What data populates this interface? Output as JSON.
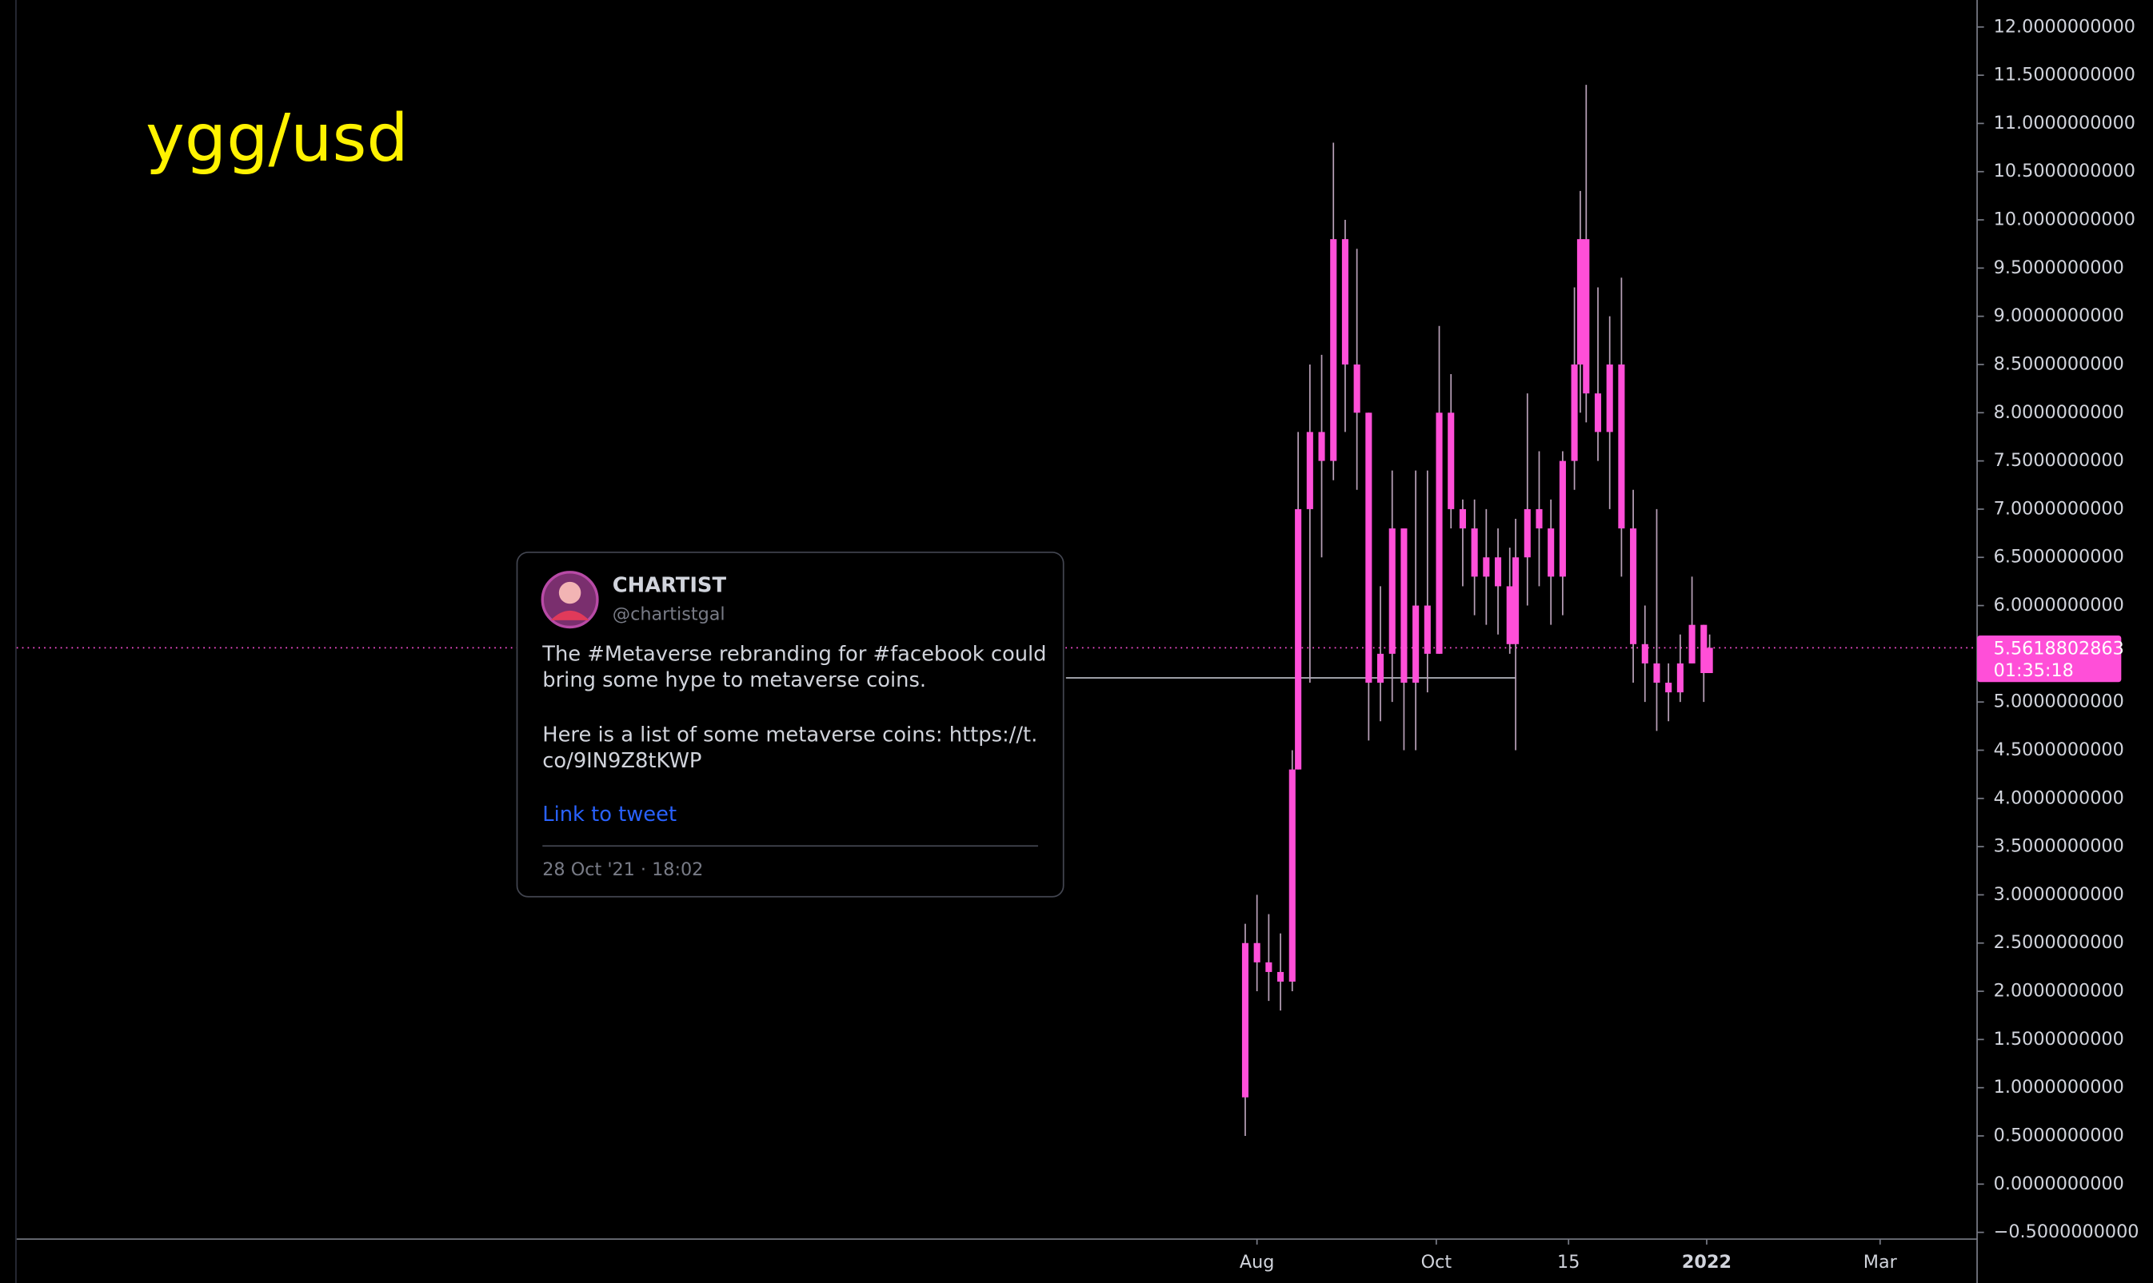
{
  "chart_data": {
    "type": "candlestick",
    "title": "ygg/usd",
    "color": "#ff4fd8",
    "wick_color": "#b8a0b8",
    "ylim": [
      -0.57,
      12.28
    ],
    "xlim": [
      -422,
      245
    ],
    "yticks": [
      {
        "value": 12,
        "label": "12.0000000000"
      },
      {
        "value": 11.5,
        "label": "11.5000000000"
      },
      {
        "value": 11,
        "label": "11.0000000000"
      },
      {
        "value": 10.5,
        "label": "10.5000000000"
      },
      {
        "value": 10,
        "label": "10.0000000000"
      },
      {
        "value": 9.5,
        "label": "9.5000000000"
      },
      {
        "value": 9,
        "label": "9.0000000000"
      },
      {
        "value": 8.5,
        "label": "8.5000000000"
      },
      {
        "value": 8,
        "label": "8.0000000000"
      },
      {
        "value": 7.5,
        "label": "7.5000000000"
      },
      {
        "value": 7,
        "label": "7.0000000000"
      },
      {
        "value": 6.5,
        "label": "6.5000000000"
      },
      {
        "value": 6,
        "label": "6.0000000000"
      },
      {
        "value": 5,
        "label": "5.0000000000"
      },
      {
        "value": 4.5,
        "label": "4.5000000000"
      },
      {
        "value": 4,
        "label": "4.0000000000"
      },
      {
        "value": 3.5,
        "label": "3.5000000000"
      },
      {
        "value": 3,
        "label": "3.0000000000"
      },
      {
        "value": 2.5,
        "label": "2.5000000000"
      },
      {
        "value": 2,
        "label": "2.0000000000"
      },
      {
        "value": 1.5,
        "label": "1.5000000000"
      },
      {
        "value": 1,
        "label": "1.0000000000"
      },
      {
        "value": 0.5,
        "label": "0.5000000000"
      },
      {
        "value": 0,
        "label": "0.0000000000"
      },
      {
        "value": -0.5,
        "label": "−0.5000000000"
      }
    ],
    "xticks": [
      {
        "value": 0,
        "label": "Aug"
      },
      {
        "value": 61,
        "label": "Oct"
      },
      {
        "value": 106,
        "label": "15"
      },
      {
        "value": 153,
        "label": "2022"
      },
      {
        "value": 212,
        "label": "Mar"
      }
    ],
    "x": [
      -4,
      0,
      4,
      8,
      12,
      14,
      18,
      22,
      26,
      30,
      34,
      38,
      42,
      46,
      50,
      54,
      58,
      62,
      66,
      70,
      74,
      78,
      82,
      86,
      88,
      92,
      96,
      100,
      104,
      108,
      110,
      112,
      116,
      120,
      124,
      128,
      132,
      136,
      140,
      144,
      148,
      152,
      154
    ],
    "open": [
      0.9,
      2.5,
      2.3,
      2.2,
      2.1,
      4.3,
      7.0,
      7.8,
      7.5,
      9.8,
      8.5,
      8.0,
      5.2,
      5.5,
      6.8,
      5.2,
      6.0,
      5.5,
      8.0,
      7.0,
      6.8,
      6.3,
      6.5,
      6.2,
      5.6,
      6.5,
      7.0,
      6.8,
      6.3,
      7.5,
      8.5,
      9.8,
      8.2,
      7.8,
      8.5,
      6.8,
      5.6,
      5.4,
      5.2,
      5.1,
      5.4,
      5.8,
      5.3
    ],
    "high": [
      2.7,
      3.0,
      2.8,
      2.6,
      4.5,
      7.8,
      8.5,
      8.6,
      10.8,
      10.0,
      9.7,
      8.0,
      6.2,
      7.4,
      6.8,
      7.4,
      7.4,
      8.9,
      8.4,
      7.1,
      7.1,
      7.0,
      6.8,
      6.6,
      6.9,
      8.2,
      7.6,
      7.1,
      7.6,
      9.3,
      10.3,
      11.4,
      9.3,
      9.0,
      9.4,
      7.2,
      6.0,
      7.0,
      5.4,
      5.7,
      6.3,
      5.8,
      5.7
    ],
    "low": [
      0.5,
      2.0,
      1.9,
      1.8,
      2.0,
      4.3,
      5.2,
      6.5,
      7.3,
      7.8,
      7.2,
      4.6,
      4.8,
      5.0,
      4.5,
      4.5,
      5.1,
      5.5,
      6.8,
      6.2,
      5.9,
      5.8,
      5.7,
      5.5,
      4.5,
      6.0,
      6.2,
      5.8,
      5.9,
      7.2,
      8.0,
      7.9,
      7.5,
      7.0,
      6.3,
      5.2,
      5.0,
      4.7,
      4.8,
      5.0,
      5.4,
      5.0,
      5.3
    ],
    "close": [
      2.5,
      2.3,
      2.2,
      2.1,
      4.3,
      7.0,
      7.8,
      7.5,
      9.8,
      8.5,
      8.0,
      5.2,
      5.5,
      6.8,
      5.2,
      6.0,
      5.5,
      8.0,
      7.0,
      6.8,
      6.3,
      6.5,
      6.2,
      5.6,
      6.5,
      7.0,
      6.8,
      6.3,
      7.5,
      8.5,
      9.8,
      8.2,
      7.8,
      8.5,
      6.8,
      5.6,
      5.4,
      5.2,
      5.1,
      5.4,
      5.8,
      5.3,
      5.5618802863
    ],
    "last_price": 5.5618802863,
    "countdown": "01:35:18",
    "hline": {
      "value": 5.25,
      "x": [
        -65,
        88
      ]
    }
  },
  "tweet": {
    "name": "CHARTIST",
    "handle": "@chartistgal",
    "text_lines": [
      "The #Metaverse rebranding for #facebook could",
      "bring some hype to metaverse coins.",
      "Here is a list of some metaverse coins: https://t.",
      "co/9IN9Z8tKWP"
    ],
    "link": "Link to tweet",
    "date": "28 Oct '21 · 18:02"
  }
}
